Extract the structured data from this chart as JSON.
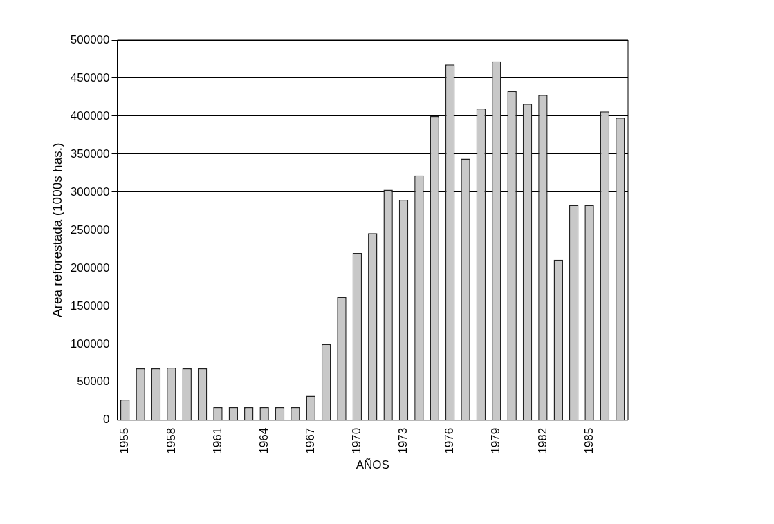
{
  "chart_data": {
    "type": "bar",
    "xlabel": "AÑOS",
    "ylabel": "Area reforestada (1000s has.)",
    "categories": [
      "1955",
      null,
      null,
      "1958",
      null,
      null,
      "1961",
      null,
      null,
      "1964",
      null,
      null,
      "1967",
      null,
      null,
      "1970",
      null,
      null,
      "1973",
      null,
      null,
      "1976",
      null,
      null,
      "1979",
      null,
      null,
      "1982",
      null,
      null,
      "1985",
      null,
      null
    ],
    "values": [
      27000,
      68000,
      68000,
      69000,
      68000,
      68000,
      17000,
      17000,
      17000,
      17000,
      17000,
      17000,
      32000,
      100000,
      162000,
      220000,
      246000,
      303000,
      290000,
      322000,
      400000,
      468000,
      344000,
      410000,
      472000,
      433000,
      416000,
      428000,
      211000,
      283000,
      283000,
      406000,
      398000
    ],
    "color": "#c8c8c8",
    "ylim": [
      0,
      500000
    ],
    "yticks": [
      0,
      50000,
      100000,
      150000,
      200000,
      250000,
      300000,
      350000,
      400000,
      450000,
      500000
    ],
    "grid": "y",
    "legend": false
  }
}
